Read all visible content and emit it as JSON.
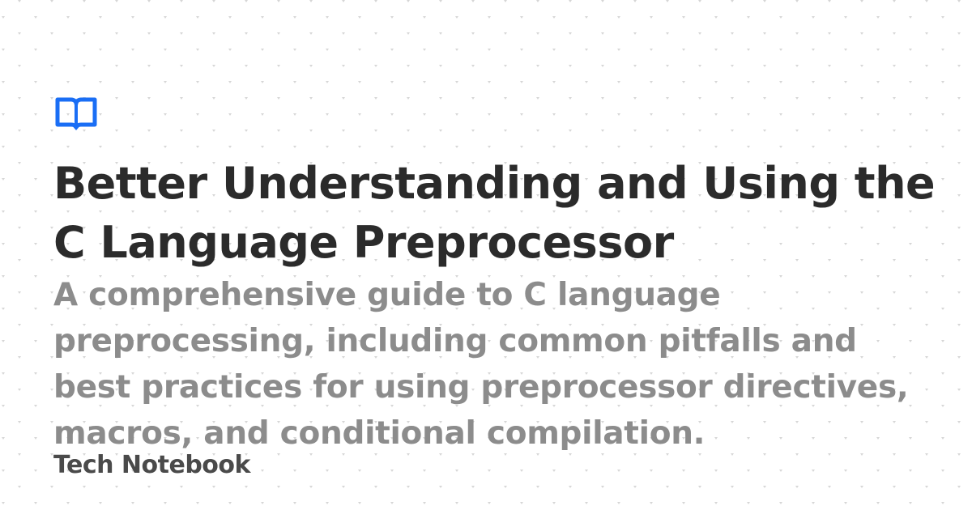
{
  "card": {
    "title": "Better Understanding and Using the C Language Preprocessor",
    "description": "A comprehensive guide to C language preprocessing, including common pitfalls and best practices for using preprocessor directives, macros, and conditional compilation.",
    "site_name": "Tech Notebook"
  },
  "logo": {
    "icon": "open-book-icon",
    "color": "#1a6ef5"
  },
  "colors": {
    "background": "#ffffff",
    "title": "#2b2b2b",
    "description": "#8c8c8c",
    "site_name": "#4a4a4a",
    "dots": "#d6d6d6"
  }
}
